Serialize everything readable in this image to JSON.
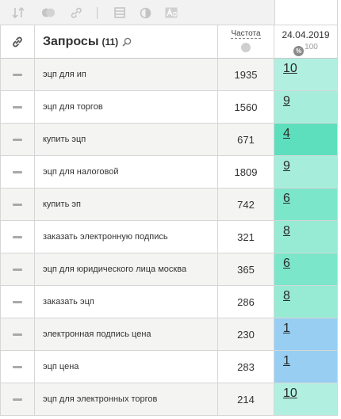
{
  "toolbar": {
    "icons": [
      "sort-icon",
      "toggle-icon",
      "link-icon",
      "table-icon",
      "contrast-icon",
      "font-icon"
    ]
  },
  "header": {
    "title": "Запросы",
    "count": "(11)",
    "frequency_label": "Частота",
    "date": "24.04.2019",
    "percent_symbol": "%",
    "percent_max": "100"
  },
  "rows": [
    {
      "query": "эцп для ип",
      "freq": "1935",
      "pos": "10",
      "color": "#b1f0e0"
    },
    {
      "query": "эцп для торгов",
      "freq": "1560",
      "pos": "9",
      "color": "#a6eedb"
    },
    {
      "query": "купить эцп",
      "freq": "671",
      "pos": "4",
      "color": "#5ddfbe"
    },
    {
      "query": "эцп для налоговой",
      "freq": "1809",
      "pos": "9",
      "color": "#a6eedb"
    },
    {
      "query": "купить эп",
      "freq": "742",
      "pos": "6",
      "color": "#7be6ca"
    },
    {
      "query": "заказать электронную подпись",
      "freq": "321",
      "pos": "8",
      "color": "#97ebd5"
    },
    {
      "query": "эцп для юридического лица москва",
      "freq": "365",
      "pos": "6",
      "color": "#7be6ca"
    },
    {
      "query": "заказать эцп",
      "freq": "286",
      "pos": "8",
      "color": "#97ebd5"
    },
    {
      "query": "электронная подпись цена",
      "freq": "230",
      "pos": "1",
      "color": "#97cef2"
    },
    {
      "query": "эцп цена",
      "freq": "283",
      "pos": "1",
      "color": "#97cef2"
    },
    {
      "query": "эцп для электронных торгов",
      "freq": "214",
      "pos": "10",
      "color": "#b1f0e0"
    }
  ]
}
